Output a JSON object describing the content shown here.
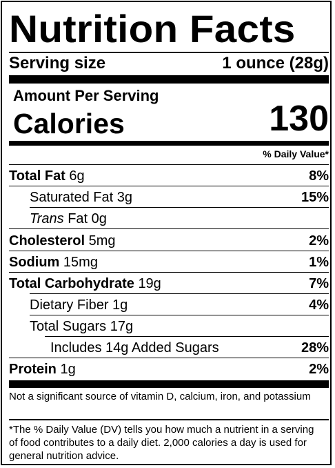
{
  "title": "Nutrition Facts",
  "serving": {
    "label": "Serving size",
    "value": "1 ounce (28g)"
  },
  "amount_per_serving": "Amount Per Serving",
  "calories": {
    "label": "Calories",
    "value": "130"
  },
  "dv_header": "% Daily Value*",
  "nutrients": {
    "total_fat": {
      "name": "Total Fat",
      "amount": "6g",
      "dv": "8%"
    },
    "saturated_fat": {
      "name": "Saturated Fat 3g",
      "dv": "15%"
    },
    "trans_fat": {
      "name_italic": "Trans",
      "name_rest": " Fat 0g"
    },
    "cholesterol": {
      "name": "Cholesterol",
      "amount": "5mg",
      "dv": "2%"
    },
    "sodium": {
      "name": "Sodium",
      "amount": "15mg",
      "dv": "1%"
    },
    "total_carbohydrate": {
      "name": "Total Carbohydrate",
      "amount": "19g",
      "dv": "7%"
    },
    "dietary_fiber": {
      "name": "Dietary Fiber 1g",
      "dv": "4%"
    },
    "total_sugars": {
      "name": "Total Sugars 17g"
    },
    "added_sugars": {
      "name": "Includes 14g Added Sugars",
      "dv": "28%"
    },
    "protein": {
      "name": "Protein",
      "amount": "1g",
      "dv": "2%"
    }
  },
  "footnote_sources": "Not a significant source of vitamin D, calcium, iron, and potassium",
  "footnote_dv": "*The % Daily Value (DV) tells you how much a nutrient in a serving of food contributes to a daily diet. 2,000 calories a day is used for general nutrition advice."
}
